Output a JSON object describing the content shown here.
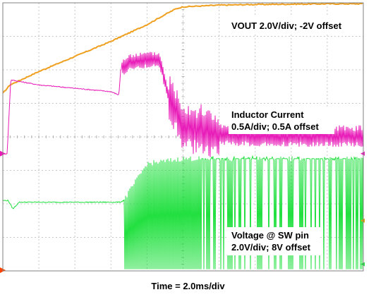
{
  "chart_data": {
    "type": "line",
    "title": "",
    "xlabel": "Time = 2.0ms/div",
    "ylabel": "",
    "grid": true,
    "grid_divisions": {
      "x": 10,
      "y": 8
    },
    "x_unit": "div",
    "xlim": [
      0,
      10
    ],
    "ylim": [
      0,
      8
    ],
    "series": [
      {
        "name": "VOUT 2.0V/div; -2V offset",
        "color": "#f0a020",
        "note_lines": [
          "VOUT 2.0V/div; -2V offset"
        ],
        "x": [
          0,
          0.2,
          1,
          2,
          3,
          4,
          4.5,
          4.8,
          5,
          6,
          7,
          8,
          9,
          10
        ],
        "y": [
          5.3,
          5.55,
          5.95,
          6.4,
          6.85,
          7.35,
          7.65,
          7.82,
          7.88,
          7.93,
          7.95,
          7.96,
          7.97,
          7.97
        ]
      },
      {
        "name": "Inductor Current",
        "color": "#e81ab8",
        "note_lines": [
          "Inductor Current",
          "0.5A/div; 0.5A offset"
        ],
        "x": [
          0,
          0.12,
          0.22,
          1,
          2,
          3,
          3.22,
          3.27,
          3.35,
          3.6,
          4,
          4.35,
          4.6,
          5,
          5.5,
          6,
          7,
          8,
          9,
          10
        ],
        "y": [
          3.5,
          3.5,
          5.7,
          5.55,
          5.45,
          5.35,
          5.25,
          6.0,
          6.1,
          6.25,
          6.3,
          6.3,
          5.2,
          4.4,
          4.2,
          4.05,
          4.0,
          4.0,
          4.0,
          4.0
        ]
      },
      {
        "name": "Voltage @ SW pin",
        "color": "#22e040",
        "note_lines": [
          "Voltage @ SW pin",
          "2.0V/div; 8V offset"
        ],
        "x": [
          0,
          0.15,
          0.28,
          0.45,
          1,
          2,
          3,
          3.25,
          3.35,
          4,
          5,
          6,
          7,
          8,
          9,
          10
        ],
        "y": [
          2.1,
          2.1,
          1.85,
          2.05,
          2.05,
          2.05,
          2.05,
          2.05,
          2.1,
          3.2,
          3.35,
          3.35,
          3.35,
          3.35,
          3.35,
          3.35
        ]
      }
    ],
    "annotations": [
      "VOUT 2.0V/div; -2V offset",
      "Inductor Current",
      "0.5A/div; 0.5A offset",
      "Voltage @ SW pin",
      "2.0V/div; 8V offset"
    ]
  }
}
